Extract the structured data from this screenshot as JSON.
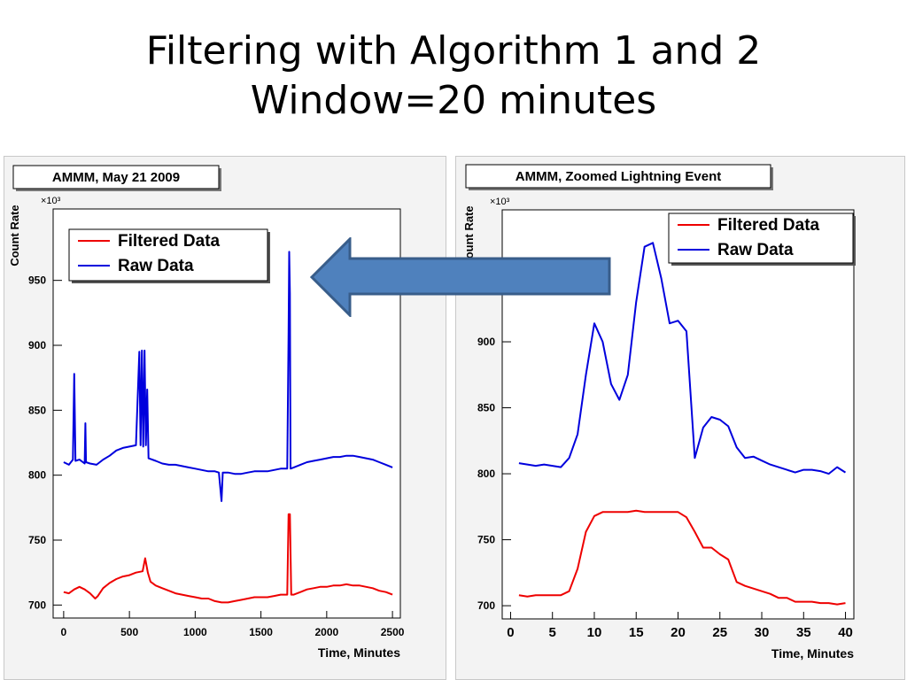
{
  "slide": {
    "title_line1": "Filtering with Algorithm 1 and 2",
    "title_line2": "Window=20 minutes"
  },
  "colors": {
    "filtered": "#ee0000",
    "raw": "#0000dd",
    "arrow_fill": "#4f81bd",
    "arrow_stroke": "#385d8a"
  },
  "chart_data": [
    {
      "type": "line",
      "title": "AMMM, May 21 2009",
      "xlabel": "Time, Minutes",
      "ylabel": "Count Rate",
      "y_multiplier": "×10³",
      "xlim": [
        -80,
        2560
      ],
      "ylim": [
        690,
        1005
      ],
      "xticks": [
        0,
        500,
        1000,
        1500,
        2000,
        2500
      ],
      "yticks": [
        700,
        750,
        800,
        850,
        900,
        950
      ],
      "legend_position": "top-left",
      "series": [
        {
          "name": "Filtered Data",
          "color": "#ee0000",
          "points": [
            [
              0,
              710
            ],
            [
              40,
              709
            ],
            [
              80,
              712
            ],
            [
              120,
              714
            ],
            [
              160,
              712
            ],
            [
              200,
              709
            ],
            [
              240,
              705
            ],
            [
              260,
              707
            ],
            [
              300,
              713
            ],
            [
              350,
              717
            ],
            [
              400,
              720
            ],
            [
              450,
              722
            ],
            [
              500,
              723
            ],
            [
              550,
              725
            ],
            [
              600,
              726
            ],
            [
              620,
              736
            ],
            [
              640,
              725
            ],
            [
              660,
              718
            ],
            [
              700,
              715
            ],
            [
              750,
              713
            ],
            [
              800,
              711
            ],
            [
              850,
              709
            ],
            [
              900,
              708
            ],
            [
              950,
              707
            ],
            [
              1000,
              706
            ],
            [
              1050,
              705
            ],
            [
              1100,
              705
            ],
            [
              1150,
              703
            ],
            [
              1200,
              702
            ],
            [
              1250,
              702
            ],
            [
              1300,
              703
            ],
            [
              1350,
              704
            ],
            [
              1400,
              705
            ],
            [
              1450,
              706
            ],
            [
              1500,
              706
            ],
            [
              1550,
              706
            ],
            [
              1600,
              707
            ],
            [
              1650,
              708
            ],
            [
              1700,
              708
            ],
            [
              1710,
              770
            ],
            [
              1720,
              770
            ],
            [
              1730,
              708
            ],
            [
              1750,
              708
            ],
            [
              1800,
              710
            ],
            [
              1850,
              712
            ],
            [
              1900,
              713
            ],
            [
              1950,
              714
            ],
            [
              2000,
              714
            ],
            [
              2050,
              715
            ],
            [
              2100,
              715
            ],
            [
              2150,
              716
            ],
            [
              2200,
              715
            ],
            [
              2250,
              715
            ],
            [
              2300,
              714
            ],
            [
              2350,
              713
            ],
            [
              2400,
              711
            ],
            [
              2450,
              710
            ],
            [
              2500,
              708
            ]
          ]
        },
        {
          "name": "Raw Data",
          "color": "#0000dd",
          "points": [
            [
              0,
              810
            ],
            [
              40,
              808
            ],
            [
              70,
              812
            ],
            [
              80,
              878
            ],
            [
              90,
              811
            ],
            [
              120,
              812
            ],
            [
              160,
              809
            ],
            [
              165,
              840
            ],
            [
              170,
              810
            ],
            [
              200,
              809
            ],
            [
              250,
              808
            ],
            [
              300,
              812
            ],
            [
              350,
              815
            ],
            [
              400,
              819
            ],
            [
              450,
              821
            ],
            [
              500,
              822
            ],
            [
              550,
              823
            ],
            [
              575,
              895
            ],
            [
              585,
              823
            ],
            [
              595,
              896
            ],
            [
              605,
              822
            ],
            [
              615,
              896
            ],
            [
              625,
              823
            ],
            [
              635,
              866
            ],
            [
              645,
              813
            ],
            [
              700,
              811
            ],
            [
              750,
              809
            ],
            [
              800,
              808
            ],
            [
              850,
              808
            ],
            [
              900,
              807
            ],
            [
              950,
              806
            ],
            [
              1000,
              805
            ],
            [
              1050,
              804
            ],
            [
              1100,
              803
            ],
            [
              1150,
              803
            ],
            [
              1180,
              802
            ],
            [
              1200,
              780
            ],
            [
              1210,
              802
            ],
            [
              1250,
              802
            ],
            [
              1300,
              801
            ],
            [
              1350,
              801
            ],
            [
              1400,
              802
            ],
            [
              1450,
              803
            ],
            [
              1500,
              803
            ],
            [
              1550,
              803
            ],
            [
              1600,
              804
            ],
            [
              1650,
              805
            ],
            [
              1700,
              805
            ],
            [
              1710,
              910
            ],
            [
              1715,
              972
            ],
            [
              1720,
              940
            ],
            [
              1725,
              805
            ],
            [
              1750,
              806
            ],
            [
              1800,
              808
            ],
            [
              1850,
              810
            ],
            [
              1900,
              811
            ],
            [
              1950,
              812
            ],
            [
              2000,
              813
            ],
            [
              2050,
              814
            ],
            [
              2100,
              814
            ],
            [
              2150,
              815
            ],
            [
              2200,
              815
            ],
            [
              2250,
              814
            ],
            [
              2300,
              813
            ],
            [
              2350,
              812
            ],
            [
              2400,
              810
            ],
            [
              2450,
              808
            ],
            [
              2500,
              806
            ]
          ]
        }
      ]
    },
    {
      "type": "line",
      "title": "AMMM, Zoomed Lightning Event",
      "xlabel": "Time, Minutes",
      "ylabel": "Count Rate",
      "y_multiplier": "×10³",
      "xlim": [
        -1,
        41
      ],
      "ylim": [
        690,
        1000
      ],
      "xticks": [
        0,
        5,
        10,
        15,
        20,
        25,
        30,
        35,
        40
      ],
      "yticks": [
        700,
        750,
        800,
        850,
        900
      ],
      "legend_position": "top-right",
      "series": [
        {
          "name": "Filtered Data",
          "color": "#ee0000",
          "x": [
            1,
            2,
            3,
            4,
            5,
            6,
            7,
            8,
            9,
            10,
            11,
            12,
            13,
            14,
            15,
            16,
            17,
            18,
            19,
            20,
            21,
            22,
            23,
            24,
            25,
            26,
            27,
            28,
            29,
            30,
            31,
            32,
            33,
            34,
            35,
            36,
            37,
            38,
            39,
            40
          ],
          "y": [
            708,
            707,
            708,
            708,
            708,
            708,
            711,
            728,
            756,
            768,
            771,
            771,
            771,
            771,
            772,
            771,
            771,
            771,
            771,
            771,
            767,
            756,
            744,
            744,
            739,
            735,
            718,
            715,
            713,
            711,
            709,
            706,
            706,
            703,
            703,
            703,
            702,
            702,
            701,
            702
          ]
        },
        {
          "name": "Raw Data",
          "color": "#0000dd",
          "x": [
            1,
            2,
            3,
            4,
            5,
            6,
            7,
            8,
            9,
            10,
            11,
            12,
            13,
            14,
            15,
            16,
            17,
            18,
            19,
            20,
            21,
            22,
            23,
            24,
            25,
            26,
            27,
            28,
            29,
            30,
            31,
            32,
            33,
            34,
            35,
            36,
            37,
            38,
            39,
            40
          ],
          "y": [
            808,
            807,
            806,
            807,
            806,
            805,
            812,
            830,
            875,
            914,
            900,
            868,
            856,
            875,
            930,
            972,
            975,
            948,
            914,
            916,
            908,
            812,
            835,
            843,
            841,
            836,
            820,
            812,
            813,
            810,
            807,
            805,
            803,
            801,
            803,
            803,
            802,
            800,
            805,
            801
          ]
        }
      ]
    }
  ]
}
